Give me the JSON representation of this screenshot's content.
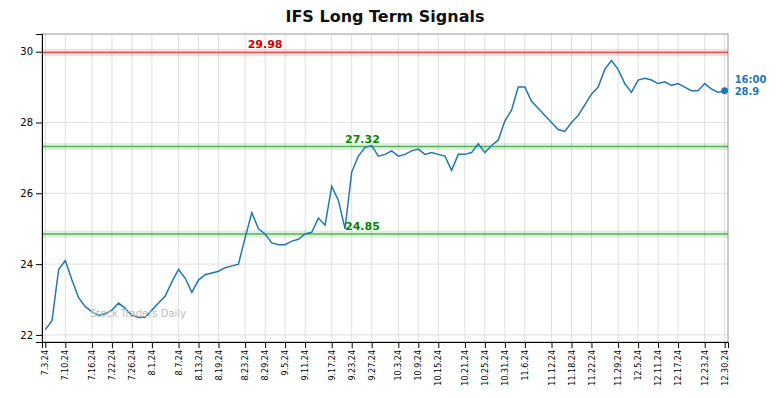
{
  "chart_data": {
    "type": "line",
    "title": "IFS Long Term Signals",
    "categories": [
      "7.3.24",
      null,
      null,
      "7.10.24",
      null,
      null,
      null,
      "7.16.24",
      null,
      null,
      "7.22.24",
      null,
      null,
      "7.26.24",
      null,
      null,
      "8.1.24",
      null,
      null,
      null,
      "8.7.24",
      null,
      null,
      "8.13.24",
      null,
      null,
      "8.19.24",
      null,
      null,
      null,
      "8.23.24",
      null,
      null,
      "8.29.24",
      null,
      null,
      "9.5.24",
      null,
      null,
      "9.11.24",
      null,
      null,
      null,
      "9.17.24",
      null,
      null,
      "9.23.24",
      null,
      null,
      "9.27.24",
      null,
      null,
      null,
      "10.3.24",
      null,
      null,
      "10.9.24",
      null,
      null,
      "10.15.24",
      null,
      null,
      null,
      "10.21.24",
      null,
      null,
      "10.25.24",
      null,
      null,
      "10.31.24",
      null,
      null,
      "11.6.24",
      null,
      null,
      null,
      "11.12.24",
      null,
      null,
      "11.18.24",
      null,
      null,
      "11.22.24",
      null,
      null,
      null,
      "11.29.24",
      null,
      null,
      "12.5.24",
      null,
      null,
      "12.11.24",
      null,
      null,
      "12.17.24",
      null,
      null,
      null,
      "12.23.24",
      null,
      null,
      "12.30.24"
    ],
    "values": [
      22.15,
      22.4,
      23.85,
      24.1,
      23.55,
      23.05,
      22.8,
      22.65,
      22.55,
      22.6,
      22.7,
      22.9,
      22.75,
      22.55,
      22.5,
      22.5,
      22.7,
      22.9,
      23.1,
      23.5,
      23.85,
      23.6,
      23.2,
      23.55,
      23.7,
      23.75,
      23.8,
      23.9,
      23.95,
      24.0,
      24.75,
      25.45,
      25.0,
      24.85,
      24.6,
      24.55,
      24.55,
      24.65,
      24.7,
      24.85,
      24.9,
      25.3,
      25.1,
      26.2,
      25.8,
      25.0,
      26.6,
      27.05,
      27.3,
      27.35,
      27.05,
      27.1,
      27.2,
      27.05,
      27.1,
      27.2,
      27.25,
      27.1,
      27.15,
      27.1,
      27.05,
      26.65,
      27.1,
      27.1,
      27.15,
      27.4,
      27.15,
      27.35,
      27.5,
      28.05,
      28.35,
      29.0,
      29.0,
      28.6,
      28.4,
      28.2,
      28.0,
      27.8,
      27.75,
      28.0,
      28.2,
      28.5,
      28.8,
      29.0,
      29.5,
      29.75,
      29.5,
      29.1,
      28.85,
      29.2,
      29.25,
      29.2,
      29.1,
      29.15,
      29.05,
      29.1,
      29.0,
      28.9,
      28.9,
      29.1,
      28.95,
      28.85,
      28.9
    ],
    "ylim": [
      21.8,
      30.5
    ],
    "yticks": [
      22,
      24,
      26,
      28,
      30
    ],
    "grid": true,
    "reference_lines": [
      {
        "value": 29.98,
        "label": "29.98",
        "color": "#cc0000"
      },
      {
        "value": 27.32,
        "label": "27.32",
        "color": "#008800"
      },
      {
        "value": 24.85,
        "label": "24.85",
        "color": "#008800"
      }
    ],
    "annotations": [
      {
        "text": "Stock Traders Daily"
      },
      {
        "text": "16:00",
        "value": 28.9
      }
    ]
  }
}
